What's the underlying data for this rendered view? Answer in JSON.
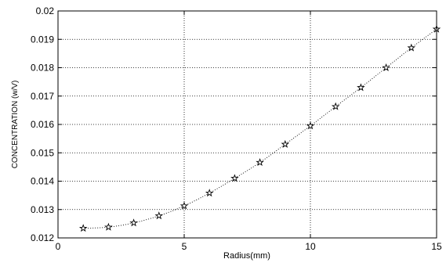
{
  "chart_data": {
    "type": "scatter",
    "title": "",
    "xlabel": "Radius(mm)",
    "ylabel": "CONCENTRATION (w/V)",
    "xlim": [
      0,
      15
    ],
    "ylim": [
      0.012,
      0.02
    ],
    "x_ticks": [
      "0",
      "5",
      "10",
      "15"
    ],
    "y_ticks": [
      "0.012",
      "0.013",
      "0.014",
      "0.015",
      "0.016",
      "0.017",
      "0.018",
      "0.019",
      "0.02"
    ],
    "grid": true,
    "marker": "star",
    "connecting_line": "dotted",
    "series": [
      {
        "x": [
          1,
          2,
          3,
          4,
          5,
          6,
          7,
          8,
          9,
          10,
          11,
          12,
          13,
          14,
          15
        ],
        "y": [
          0.01234,
          0.01238,
          0.01253,
          0.01278,
          0.01313,
          0.01358,
          0.0141,
          0.01466,
          0.0153,
          0.01595,
          0.01663,
          0.0173,
          0.018,
          0.0187,
          0.01936
        ]
      }
    ]
  }
}
